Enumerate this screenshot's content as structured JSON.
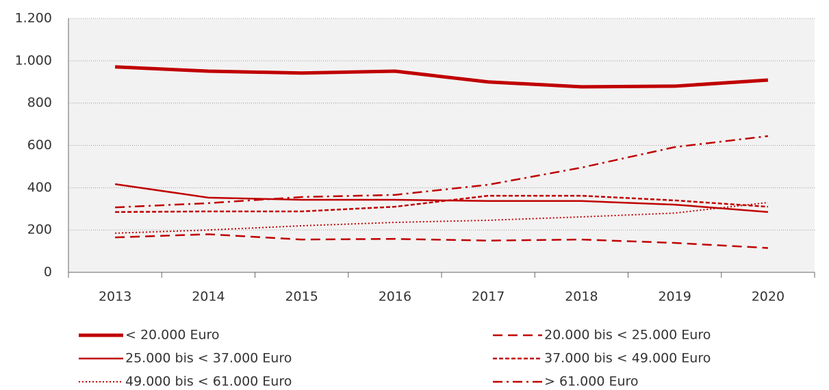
{
  "chart_data": {
    "type": "line",
    "categories": [
      "2013",
      "2014",
      "2015",
      "2016",
      "2017",
      "2018",
      "2019",
      "2020"
    ],
    "ylim": [
      0,
      1200
    ],
    "yticks": [
      0,
      200,
      400,
      600,
      800,
      {
        "value": 1000,
        "label": "1.000"
      },
      {
        "value": 1200,
        "label": "1.200"
      }
    ],
    "grid": true,
    "series": [
      {
        "name": "< 20.000 Euro",
        "color": "#c00000",
        "style": "solid-thick",
        "values": [
          971,
          951,
          942,
          951,
          900,
          877,
          880,
          909
        ]
      },
      {
        "name": "20.000 bis < 25.000 Euro",
        "color": "#c00000",
        "style": "dashed",
        "values": [
          165,
          180,
          155,
          158,
          150,
          155,
          139,
          115
        ]
      },
      {
        "name": "25.000 bis < 37.000 Euro",
        "color": "#c00000",
        "style": "solid",
        "values": [
          417,
          353,
          343,
          343,
          337,
          337,
          320,
          285
        ]
      },
      {
        "name": "37.000 bis < 49.000 Euro",
        "color": "#c00000",
        "style": "short-dashed",
        "values": [
          285,
          288,
          288,
          310,
          362,
          362,
          340,
          310
        ]
      },
      {
        "name": "49.000 bis < 61.000 Euro",
        "color": "#c00000",
        "style": "dotted",
        "values": [
          185,
          200,
          220,
          236,
          246,
          262,
          280,
          330
        ]
      },
      {
        "name": "> 61.000 Euro",
        "color": "#c00000",
        "style": "dash-dot",
        "values": [
          307,
          327,
          356,
          366,
          414,
          495,
          592,
          644
        ]
      }
    ]
  }
}
